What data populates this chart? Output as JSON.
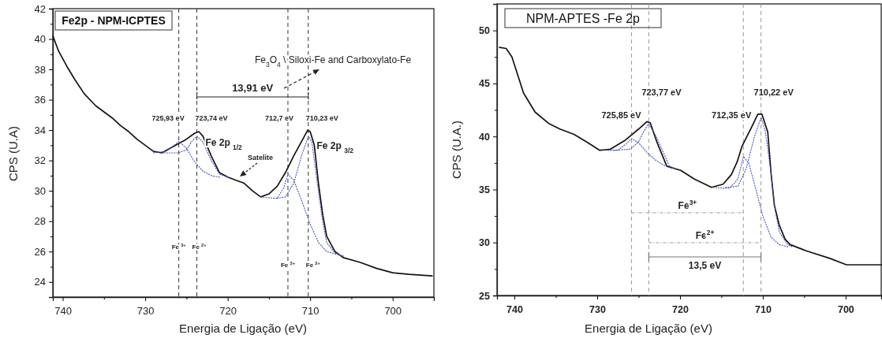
{
  "chart_data": [
    {
      "type": "line",
      "title": "Fe2p - NPM-ICPTES",
      "xlabel": "Energia de Ligação (eV)",
      "ylabel": "CPS (U.A)",
      "xlim": [
        741.2,
        695
      ],
      "xticks": [
        740,
        {
          "value": 735,
          "label": null
        },
        730,
        {
          "value": 725,
          "label": null
        },
        720,
        {
          "value": 715,
          "label": null
        },
        710,
        {
          "value": 705,
          "label": null
        },
        700
      ],
      "ylim": [
        23,
        42
      ],
      "yticks": [
        24,
        {
          "value": 25,
          "label": null
        },
        26,
        {
          "value": 27,
          "label": null
        },
        28,
        {
          "value": 29,
          "label": null
        },
        30,
        {
          "value": 31,
          "label": null
        },
        32,
        {
          "value": 33,
          "label": null
        },
        34,
        {
          "value": 35,
          "label": null
        },
        36,
        {
          "value": 37,
          "label": null
        },
        38,
        {
          "value": 39,
          "label": null
        },
        40,
        {
          "value": 41,
          "label": null
        },
        42
      ],
      "grid": false,
      "marker": "none",
      "series": [
        {
          "color": "#1a1111",
          "line_style": "solid",
          "x": [
            741.2,
            740.5,
            739.5,
            738.5,
            737.4,
            736,
            735,
            734,
            733,
            732,
            731,
            730,
            729,
            728,
            727,
            726,
            725,
            724,
            723.5,
            723,
            722,
            721,
            720,
            719,
            718,
            717,
            716,
            715,
            714,
            713,
            712,
            711,
            710.3,
            710,
            709.5,
            709,
            708.5,
            708,
            707,
            706,
            704,
            702,
            700,
            698,
            695.2
          ],
          "values": [
            40.2,
            39.2,
            38.2,
            37.3,
            36.4,
            35.6,
            35.2,
            34.8,
            34.3,
            33.9,
            33.4,
            33,
            32.6,
            32.5,
            32.8,
            33.1,
            33.4,
            33.8,
            33.9,
            33.6,
            32.3,
            31.2,
            30.9,
            30.7,
            30.5,
            30,
            29.6,
            29.8,
            30.3,
            31.2,
            32.3,
            33.3,
            34,
            33.9,
            33,
            30.5,
            28.5,
            27,
            26,
            25.6,
            25.3,
            24.9,
            24.6,
            24.5,
            24.4
          ]
        },
        {
          "color": "#4455bb",
          "line_style": "dotted",
          "x": [
            729,
            727.5,
            726.5,
            725.9,
            725,
            724,
            723,
            722,
            721
          ],
          "values": [
            32.5,
            32.6,
            33,
            33.25,
            32.8,
            31.9,
            31.3,
            31,
            30.9
          ]
        },
        {
          "color": "#4455bb",
          "line_style": "dotted",
          "x": [
            728,
            726,
            725,
            724.3,
            723.7,
            723,
            722,
            721,
            720
          ],
          "values": [
            32.5,
            32.5,
            32.7,
            33.3,
            33.6,
            33.2,
            32,
            31.1,
            30.9
          ]
        },
        {
          "color": "#4455bb",
          "line_style": "dotted",
          "x": [
            716,
            714,
            713.2,
            712.7,
            712,
            711,
            710,
            709,
            708,
            706
          ],
          "values": [
            29.6,
            29.5,
            30.2,
            31.1,
            30.7,
            29.3,
            27.8,
            26.6,
            26,
            25.7
          ]
        },
        {
          "color": "#4455bb",
          "line_style": "dotted",
          "x": [
            714,
            713,
            712,
            711,
            710.2,
            709.8,
            709,
            708.5,
            708,
            707,
            706
          ],
          "values": [
            29.5,
            29.6,
            30.5,
            32.4,
            33.6,
            33.2,
            30,
            28,
            26.6,
            25.9,
            25.7
          ]
        }
      ],
      "ref_lines": [
        {
          "axis": "x",
          "value": 725.93,
          "color": "#333333",
          "line_style": "dashed"
        },
        {
          "axis": "x",
          "value": 723.74,
          "color": "#333333",
          "line_style": "dashed"
        },
        {
          "axis": "x",
          "value": 712.7,
          "color": "#333333",
          "line_style": "dashed"
        },
        {
          "axis": "x",
          "value": 710.23,
          "color": "#333333",
          "line_style": "dashed"
        }
      ],
      "annotations": [
        "13,91 eV",
        {
          "text": "725,93 eV",
          "x": 725.93,
          "y": 34.8
        },
        {
          "text": "723,74 eV",
          "x": 723.74,
          "y": 34.8
        },
        {
          "text": "712,7 eV",
          "x": 712.7,
          "y": 34.8
        },
        {
          "text": "710,23 eV",
          "x": 710.23,
          "y": 34.8
        },
        {
          "text": "Fe 2p $_{1/2}$",
          "x": 722.7,
          "y": 33.2
        },
        {
          "text": "Fe 2p $_{3/2}$",
          "x": 709.2,
          "y": 33
        },
        "Satelite",
        "Fe$_{3}$O$_{4}$ \\ Siloxi-Fe and Carboxylato-Fe",
        {
          "text": "Fe $^{3+}$",
          "x": 725.93,
          "y": 26.3
        },
        {
          "text": "Fe $^{2+}$",
          "x": 723.74,
          "y": 26.3
        },
        {
          "text": "Fe $^{3+}$",
          "x": 712.7,
          "y": 25.1
        },
        {
          "text": "Fe $^{2+}$",
          "x": 710.23,
          "y": 25.1
        }
      ]
    },
    {
      "type": "line",
      "title": "NPM-APTES -Fe 2p",
      "xlabel": "Energia de Ligação (eV)",
      "ylabel": "CPS (U.A.)",
      "xlim": [
        742.1,
        695.7
      ],
      "xticks": [
        740,
        {
          "value": 735,
          "label": null
        },
        730,
        {
          "value": 725,
          "label": null
        },
        720,
        {
          "value": 715,
          "label": null
        },
        710,
        {
          "value": 705,
          "label": null
        },
        700
      ],
      "ylim": [
        25,
        52.5
      ],
      "yticks": [
        25,
        {
          "value": 27.5,
          "label": null
        },
        30,
        {
          "value": 32.5,
          "label": null
        },
        35,
        {
          "value": 37.5,
          "label": null
        },
        40,
        {
          "value": 42.5,
          "label": null
        },
        45,
        {
          "value": 47.5,
          "label": null
        },
        50
      ],
      "grid": false,
      "marker": "none",
      "series": [
        {
          "color": "#1a1111",
          "line_style": "solid",
          "x": [
            741.8,
            741,
            740.3,
            738.9,
            737.5,
            735.8,
            734.5,
            732.8,
            731.1,
            729.7,
            728.4,
            726.7,
            725,
            724,
            723.6,
            722.8,
            721.6,
            719.9,
            718.3,
            716.2,
            714.8,
            713.8,
            713.1,
            712.5,
            711.4,
            710.6,
            710.1,
            709.4,
            709,
            708.6,
            708,
            707.3,
            706.7,
            704.7,
            701.9,
            699.9,
            696.5,
            695.7
          ],
          "values": [
            48.4,
            48.3,
            47.5,
            44.1,
            42.3,
            41.2,
            40.7,
            40.2,
            39.4,
            38.7,
            38.8,
            39.6,
            40.7,
            41.4,
            41.3,
            39.5,
            37.2,
            36.8,
            36,
            35.2,
            35.5,
            36.4,
            37.6,
            39.1,
            40.8,
            42.1,
            42.1,
            40.4,
            36.5,
            33.5,
            31.6,
            30.3,
            29.8,
            29.2,
            28.5,
            27.9,
            27.9,
            27.9
          ]
        },
        {
          "color": "#4455bb",
          "line_style": "dotted",
          "x": [
            729,
            727.5,
            726.5,
            725.85,
            725,
            724,
            723,
            722,
            721
          ],
          "values": [
            38.7,
            38.7,
            39.3,
            39.8,
            39.4,
            38.5,
            37.8,
            37.3,
            37
          ]
        },
        {
          "color": "#4455bb",
          "line_style": "dotted",
          "x": [
            728,
            726,
            725,
            724.5,
            723.8,
            723,
            722,
            721.3,
            720.5
          ],
          "values": [
            38.7,
            38.8,
            39.5,
            40.3,
            41.2,
            40.2,
            38.5,
            37.2,
            36.9
          ]
        },
        {
          "color": "#4455bb",
          "line_style": "dotted",
          "x": [
            716,
            714,
            713,
            712.35,
            711.7,
            711,
            710,
            709,
            708,
            707
          ],
          "values": [
            35.2,
            35.1,
            36,
            38.1,
            37.5,
            35.5,
            32.5,
            30.5,
            29.8,
            29.6
          ]
        },
        {
          "color": "#4455bb",
          "line_style": "dotted",
          "x": [
            714.5,
            713,
            712,
            711,
            710.2,
            709.7,
            709,
            708.5,
            708,
            707,
            706.5
          ],
          "values": [
            35.2,
            35.3,
            37,
            40,
            41.8,
            40.5,
            36.5,
            33,
            31,
            29.8,
            29.6
          ]
        }
      ],
      "ref_lines": [
        {
          "axis": "x",
          "value": 725.85,
          "color": "#999999",
          "line_style": "dashed"
        },
        {
          "axis": "x",
          "value": 723.77,
          "color": "#999999",
          "line_style": "dashed"
        },
        {
          "axis": "x",
          "value": 712.35,
          "color": "#999999",
          "line_style": "dashed"
        },
        {
          "axis": "x",
          "value": 710.22,
          "color": "#999999",
          "line_style": "dashed"
        }
      ],
      "annotations": [
        "Fe$^{3+}$",
        "Fe$^{2+}$",
        "13,5 eV",
        {
          "text": "725,85 eV",
          "x": 725.85,
          "y": 42
        },
        {
          "text": "723,77 eV",
          "x": 723.77,
          "y": 44.2
        },
        {
          "text": "712,35 eV",
          "x": 712.35,
          "y": 42
        },
        {
          "text": "710,22 eV",
          "x": 710.22,
          "y": 44.2
        }
      ]
    }
  ]
}
